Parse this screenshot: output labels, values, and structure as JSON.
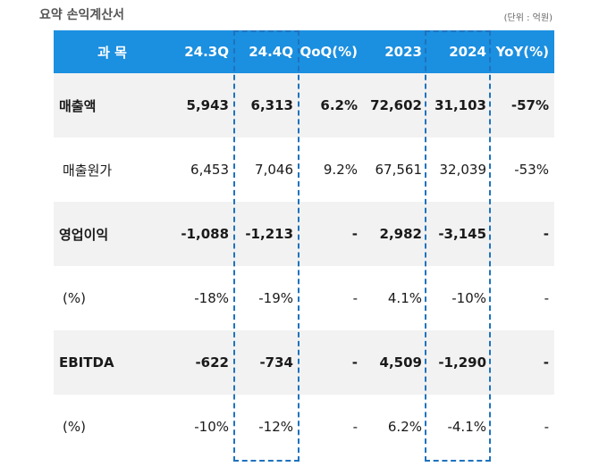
{
  "title": "요약 손익계산서",
  "unit": "(단위 : 억원)",
  "headers": [
    "과 목",
    "24.3Q",
    "24.4Q",
    "QoQ(%)",
    "2023",
    "2024",
    "YoY(%)"
  ],
  "rows": [
    {
      "label": "매출액",
      "values": [
        "5,943",
        "6,313",
        "6.2%",
        "72,602",
        "31,103",
        "-57%"
      ]
    },
    {
      "label": "매출원가",
      "values": [
        "6,453",
        "7,046",
        "9.2%",
        "67,561",
        "32,039",
        "-53%"
      ]
    },
    {
      "label": "영업이익",
      "values": [
        "-1,088",
        "-1,213",
        "-",
        "2,982",
        "-3,145",
        "-"
      ]
    },
    {
      "label": "(%)",
      "values": [
        "-18%",
        "-19%",
        "-",
        "4.1%",
        "-10%",
        "-"
      ]
    },
    {
      "label": "EBITDA",
      "values": [
        "-622",
        "-734",
        "-",
        "4,509",
        "-1,290",
        "-"
      ]
    },
    {
      "label": "(%)",
      "values": [
        "-10%",
        "-12%",
        "-",
        "6.2%",
        "-4.1%",
        "-"
      ]
    }
  ]
}
